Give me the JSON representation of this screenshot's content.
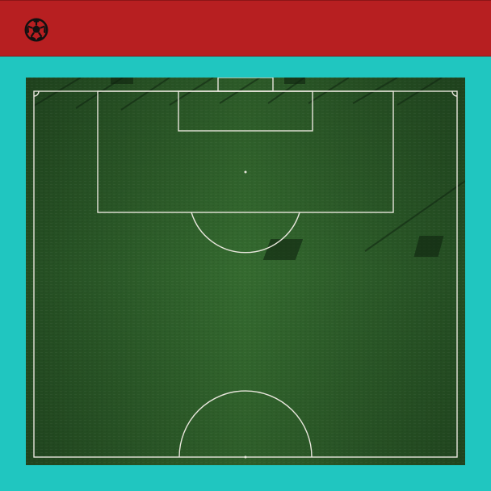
{
  "header": {
    "background_color": "#b71f21",
    "logo_icon": "soccer-ball-icon"
  },
  "page": {
    "background_color": "#20c6c0"
  },
  "image": {
    "subject": "aerial-view-soccer-field",
    "grass_color": "#2c5a28",
    "line_color": "#e8e6dc"
  }
}
